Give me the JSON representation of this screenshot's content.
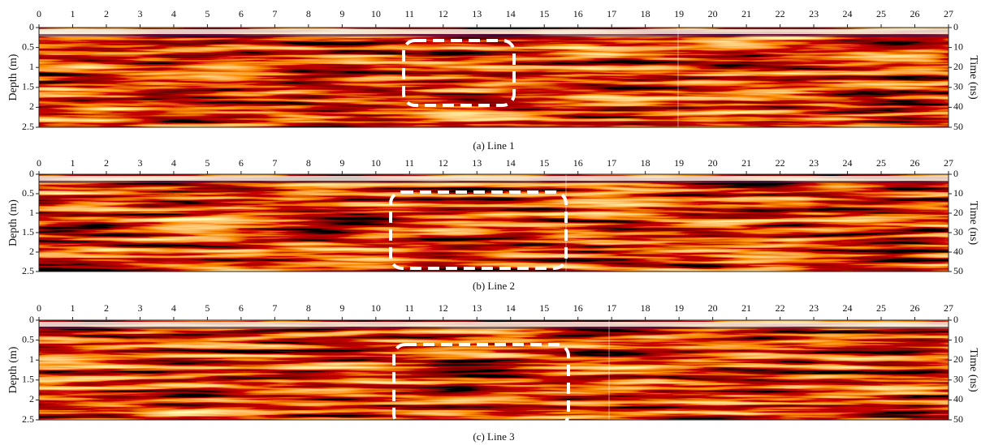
{
  "chart_data": [
    {
      "type": "radargram",
      "caption": "(a) Line 1",
      "ylabel": "Depth (m)",
      "y2label": "Time (ns)",
      "xlim": [
        0,
        27
      ],
      "xticks": [
        0,
        1,
        2,
        3,
        4,
        5,
        6,
        7,
        8,
        9,
        10,
        11,
        12,
        13,
        14,
        15,
        16,
        17,
        18,
        19,
        20,
        21,
        22,
        23,
        24,
        25,
        26,
        27
      ],
      "ylim": [
        0,
        2.5
      ],
      "yticks": [
        0,
        0.5,
        1,
        1.5,
        2,
        2.5
      ],
      "y2lim": [
        0,
        50
      ],
      "y2ticks": [
        0,
        10,
        20,
        30,
        40,
        50
      ]
    },
    {
      "type": "radargram",
      "caption": "(b) Line 2",
      "ylabel": "Depth (m)",
      "y2label": "Time (ns)",
      "xlim": [
        0,
        27
      ],
      "xticks": [
        0,
        1,
        2,
        3,
        4,
        5,
        6,
        7,
        8,
        9,
        10,
        11,
        12,
        13,
        14,
        15,
        16,
        17,
        18,
        19,
        20,
        21,
        22,
        23,
        24,
        25,
        26,
        27
      ],
      "ylim": [
        0,
        2.5
      ],
      "yticks": [
        0,
        0.5,
        1,
        1.5,
        2,
        2.5
      ],
      "y2lim": [
        0,
        50
      ],
      "y2ticks": [
        0,
        10,
        20,
        30,
        40,
        50
      ]
    },
    {
      "type": "radargram",
      "caption": "(c) Line 3",
      "ylabel": "Depth (m)",
      "y2label": "Time (ns)",
      "xlim": [
        0,
        27
      ],
      "xticks": [
        0,
        1,
        2,
        3,
        4,
        5,
        6,
        7,
        8,
        9,
        10,
        11,
        12,
        13,
        14,
        15,
        16,
        17,
        18,
        19,
        20,
        21,
        22,
        23,
        24,
        25,
        26,
        27
      ],
      "ylim": [
        0,
        2.5
      ],
      "yticks": [
        0,
        0.5,
        1,
        1.5,
        2,
        2.5
      ],
      "y2lim": [
        0,
        50
      ],
      "y2ticks": [
        0,
        10,
        20,
        30,
        40,
        50
      ]
    }
  ]
}
